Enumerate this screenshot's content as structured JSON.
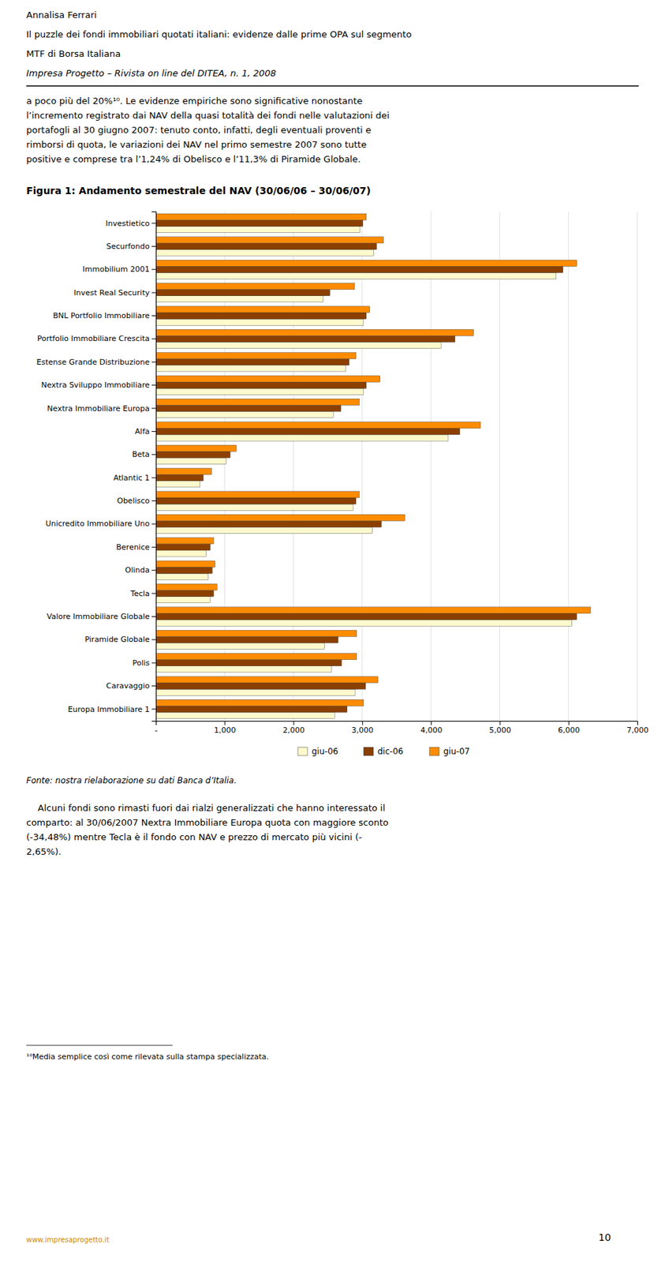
{
  "header": [
    "Annalisa Ferrari",
    "Il puzzle dei fondi immobiliari quotati italiani: evidenze dalle prime OPA sul segmento",
    "MTF di Borsa Italiana"
  ],
  "header_italic": "Impresa Progetto – Rivista on line del DITEA, n. 1, 2008",
  "body_text_top": [
    "a poco più del 20%¹⁰. Le evidenze empiriche sono significative nonostante",
    "l’incremento registrato dai NAV della quasi totalità dei fondi nelle valutazioni dei",
    "portafogli al 30 giugno 2007: tenuto conto, infatti, degli eventuali proventi e",
    "rimborsi di quota, le variazioni dei NAV nel primo semestre 2007 sono tutte",
    "positive e comprese tra l’1,24% di Obelisco e l’11,3% di Piramide Globale."
  ],
  "chart_data": {
    "type": "bar",
    "orientation": "horizontal",
    "title": "Figura 1: Andamento semestrale del NAV (30/06/06 – 30/06/07)",
    "categories": [
      "Europa Immobiliare 1",
      "Caravaggio",
      "Polis",
      "Piramide Globale",
      "Valore Immobiliare Globale",
      "Tecla",
      "Olinda",
      "Berenice",
      "Unicredito Immobiliare Uno",
      "Obelisco",
      "Atlantic 1",
      "Beta",
      "Alfa",
      "Nextra Immobiliare Europa",
      "Nextra Sviluppo Immobiliare",
      "Estense Grande Distribuzione",
      "Portfolio Immobiliare Crescita",
      "BNL Portfolio Immobiliare",
      "Invest Real Security",
      "Immobilium 2001",
      "Securfondo",
      "Investietico"
    ],
    "series": [
      {
        "name": "giu-06",
        "color": "#FFFACD",
        "values": [
          2600,
          2900,
          2550,
          2450,
          6050,
          790,
          760,
          730,
          3150,
          2870,
          640,
          1020,
          4250,
          2580,
          3020,
          2760,
          4150,
          3020,
          2430,
          5820,
          3170,
          2970
        ]
      },
      {
        "name": "dic-06",
        "color": "#8B4000",
        "values": [
          2780,
          3050,
          2700,
          2650,
          6120,
          840,
          820,
          790,
          3280,
          2910,
          690,
          1080,
          4420,
          2690,
          3060,
          2810,
          4350,
          3060,
          2530,
          5920,
          3210,
          3010
        ]
      },
      {
        "name": "giu-07",
        "color": "#FF8C00",
        "values": [
          3020,
          3230,
          2920,
          2920,
          6320,
          890,
          860,
          840,
          3620,
          2960,
          810,
          1170,
          4720,
          2960,
          3260,
          2910,
          4620,
          3110,
          2890,
          6120,
          3310,
          3060
        ]
      }
    ],
    "xlim": [
      0,
      7000
    ],
    "xticks": [
      {
        "value": 0,
        "label": "-"
      },
      {
        "value": 1000,
        "label": "1,000"
      },
      {
        "value": 2000,
        "label": "2,000"
      },
      {
        "value": 3000,
        "label": "3,000"
      },
      {
        "value": 4000,
        "label": "4,000"
      },
      {
        "value": 5000,
        "label": "5,000"
      },
      {
        "value": 6000,
        "label": "6,000"
      },
      {
        "value": 7000,
        "label": "7,000"
      }
    ],
    "grid": true,
    "legend": "bottom"
  },
  "source": "Fonte: nostra rielaborazione su dati Banca d’Italia.",
  "footer_text": [
    "    Alcuni fondi sono rimasti fuori dai rialzi generalizzati che hanno interessato il",
    "comparto: al 30/06/2007 Nextra Immobiliare Europa quota con maggiore sconto",
    "(-34,48%) mentre Tecla è il fondo con NAV e prezzo di mercato più vicini (-",
    "2,65%)."
  ],
  "footnote": "¹⁰Media semplice così come rilevata sulla stampa specializzata.",
  "page_number": "10",
  "logo_text": "www.impresaprogetto.it",
  "logo_color": "#CC8800"
}
